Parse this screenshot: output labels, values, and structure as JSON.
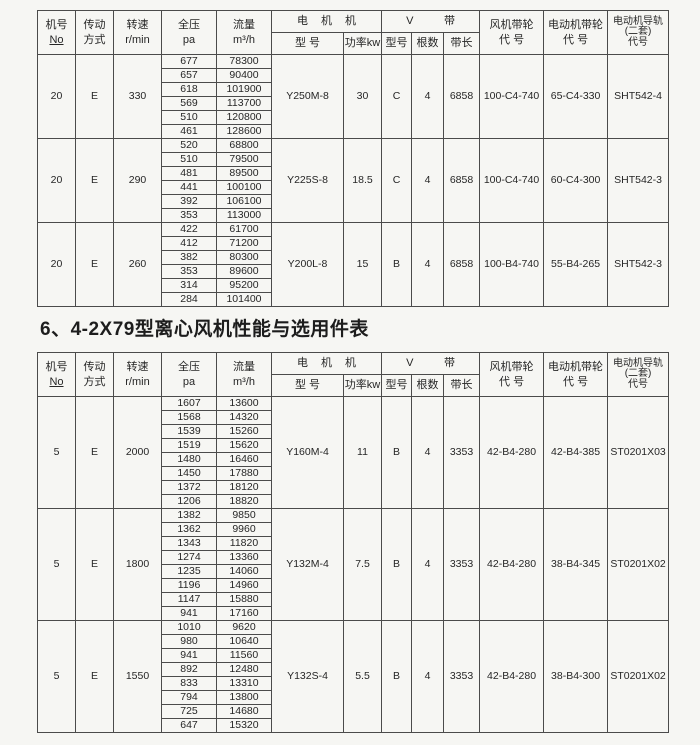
{
  "section_title": "6、4-2X79型离心风机性能与选用件表",
  "colors": {
    "paper": "#f6f6f3",
    "ink": "#262626",
    "border": "#4b4b4b"
  },
  "table_header": {
    "machine_no": [
      "机号",
      "No"
    ],
    "drive": [
      "传动",
      "方式"
    ],
    "speed": [
      "转速",
      "r/min"
    ],
    "pressure": [
      "全压",
      "pa"
    ],
    "flow": [
      "流量",
      "m³/h"
    ],
    "motor_group": "电 机 机",
    "motor_model": "型 号",
    "motor_power": "功率kw",
    "vbelt_group": "V 带",
    "belt_model": "型号",
    "belt_count": "根数",
    "belt_length": "带长",
    "fan_pulley": [
      "风机带轮",
      "代 号"
    ],
    "motor_pulley": [
      "电动机带轮",
      "代 号"
    ],
    "motor_rail": [
      "电动机导轨",
      "(二套)",
      "代号"
    ]
  },
  "table1": {
    "blocks": [
      {
        "machine_no": "20",
        "drive": "E",
        "speed": "330",
        "rows": [
          [
            "677",
            "78300"
          ],
          [
            "657",
            "90400"
          ],
          [
            "618",
            "101900"
          ],
          [
            "569",
            "113700"
          ],
          [
            "510",
            "120800"
          ],
          [
            "461",
            "128600"
          ]
        ],
        "motor_model": "Y250M-8",
        "power_kw": "30",
        "belt_type": "C",
        "belt_count": "4",
        "belt_length": "6858",
        "fan_pulley": "100-C4-740",
        "motor_pulley": "65-C4-330",
        "rail_code": "SHT542-4"
      },
      {
        "machine_no": "20",
        "drive": "E",
        "speed": "290",
        "rows": [
          [
            "520",
            "68800"
          ],
          [
            "510",
            "79500"
          ],
          [
            "481",
            "89500"
          ],
          [
            "441",
            "100100"
          ],
          [
            "392",
            "106100"
          ],
          [
            "353",
            "113000"
          ]
        ],
        "motor_model": "Y225S-8",
        "power_kw": "18.5",
        "belt_type": "C",
        "belt_count": "4",
        "belt_length": "6858",
        "fan_pulley": "100-C4-740",
        "motor_pulley": "60-C4-300",
        "rail_code": "SHT542-3"
      },
      {
        "machine_no": "20",
        "drive": "E",
        "speed": "260",
        "rows": [
          [
            "422",
            "61700"
          ],
          [
            "412",
            "71200"
          ],
          [
            "382",
            "80300"
          ],
          [
            "353",
            "89600"
          ],
          [
            "314",
            "95200"
          ],
          [
            "284",
            "101400"
          ]
        ],
        "motor_model": "Y200L-8",
        "power_kw": "15",
        "belt_type": "B",
        "belt_count": "4",
        "belt_length": "6858",
        "fan_pulley": "100-B4-740",
        "motor_pulley": "55-B4-265",
        "rail_code": "SHT542-3"
      }
    ]
  },
  "table2": {
    "blocks": [
      {
        "machine_no": "5",
        "drive": "E",
        "speed": "2000",
        "rows": [
          [
            "1607",
            "13600"
          ],
          [
            "1568",
            "14320"
          ],
          [
            "1539",
            "15260"
          ],
          [
            "1519",
            "15620"
          ],
          [
            "1480",
            "16460"
          ],
          [
            "1450",
            "17880"
          ],
          [
            "1372",
            "18120"
          ],
          [
            "1206",
            "18820"
          ]
        ],
        "motor_model": "Y160M-4",
        "power_kw": "11",
        "belt_type": "B",
        "belt_count": "4",
        "belt_length": "3353",
        "fan_pulley": "42-B4-280",
        "motor_pulley": "42-B4-385",
        "rail_code": "ST0201X03"
      },
      {
        "machine_no": "5",
        "drive": "E",
        "speed": "1800",
        "rows": [
          [
            "1382",
            "9850"
          ],
          [
            "1362",
            "9960"
          ],
          [
            "1343",
            "11820"
          ],
          [
            "1274",
            "13360"
          ],
          [
            "1235",
            "14060"
          ],
          [
            "1196",
            "14960"
          ],
          [
            "1147",
            "15880"
          ],
          [
            "941",
            "17160"
          ]
        ],
        "motor_model": "Y132M-4",
        "power_kw": "7.5",
        "belt_type": "B",
        "belt_count": "4",
        "belt_length": "3353",
        "fan_pulley": "42-B4-280",
        "motor_pulley": "38-B4-345",
        "rail_code": "ST0201X02"
      },
      {
        "machine_no": "5",
        "drive": "E",
        "speed": "1550",
        "rows": [
          [
            "1010",
            "9620"
          ],
          [
            "980",
            "10640"
          ],
          [
            "941",
            "11560"
          ],
          [
            "892",
            "12480"
          ],
          [
            "833",
            "13310"
          ],
          [
            "794",
            "13800"
          ],
          [
            "725",
            "14680"
          ],
          [
            "647",
            "15320"
          ]
        ],
        "motor_model": "Y132S-4",
        "power_kw": "5.5",
        "belt_type": "B",
        "belt_count": "4",
        "belt_length": "3353",
        "fan_pulley": "42-B4-280",
        "motor_pulley": "38-B4-300",
        "rail_code": "ST0201X02"
      }
    ]
  }
}
